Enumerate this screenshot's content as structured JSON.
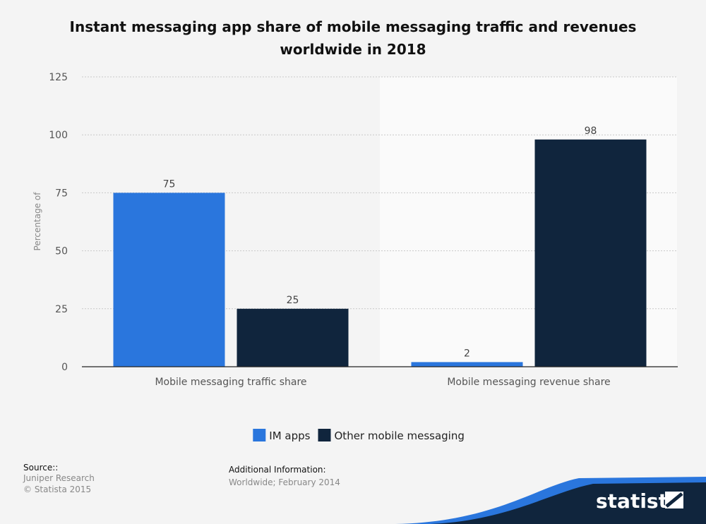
{
  "chart_data": {
    "type": "bar",
    "title": "Instant messaging app share of mobile messaging traffic and revenues worldwide in 2018",
    "categories": [
      "Mobile messaging traffic share",
      "Mobile messaging revenue share"
    ],
    "series": [
      {
        "name": "IM apps",
        "values": [
          75,
          2
        ],
        "color": "#2a76dd"
      },
      {
        "name": "Other mobile messaging",
        "values": [
          25,
          98
        ],
        "color": "#10253d"
      }
    ],
    "ylabel": "Percentage of",
    "xlabel": "",
    "ylim": [
      0,
      125
    ],
    "yticks": [
      0,
      25,
      50,
      75,
      100,
      125
    ],
    "grid": true,
    "legend": "bottom-center"
  },
  "footer": {
    "source_label": "Source::",
    "source_lines": [
      "Juniper Research",
      "© Statista 2015"
    ],
    "info_label": "Additional Information:",
    "info_text": "Worldwide; February 2014"
  },
  "brand": {
    "name": "statista"
  }
}
